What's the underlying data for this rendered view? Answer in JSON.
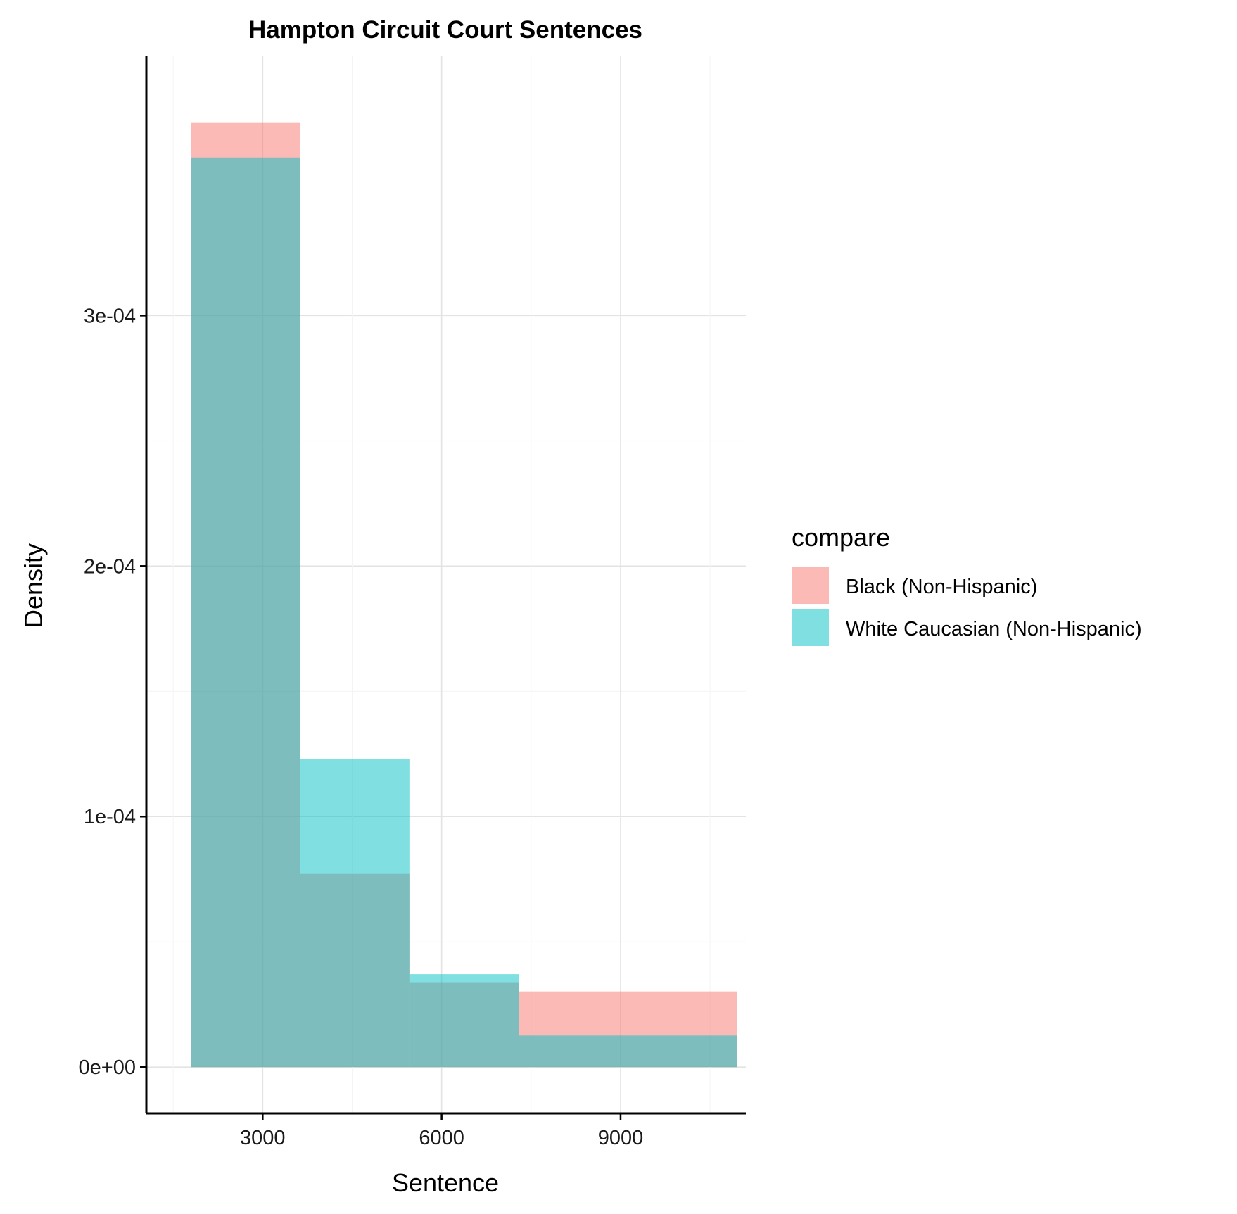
{
  "chart_data": {
    "type": "histogram",
    "title": "Hampton Circuit Court Sentences",
    "xlabel": "Sentence",
    "ylabel": "Density",
    "x_ticks": [
      3000,
      6000,
      9000
    ],
    "x_tick_labels": [
      "3000",
      "6000",
      "9000"
    ],
    "y_ticks": [
      0,
      0.0001,
      0.0002,
      0.0003
    ],
    "y_tick_labels": [
      "0e+00",
      "1e-04",
      "2e-04",
      "3e-04"
    ],
    "xlim": [
      1050,
      11100
    ],
    "ylim": [
      -1.85e-05,
      0.0004035
    ],
    "grid": true,
    "legend_title": "compare",
    "legend_position": "right",
    "bins": [
      [
        1800,
        3630
      ],
      [
        3630,
        5460
      ],
      [
        5460,
        7290
      ],
      [
        7290,
        10950
      ]
    ],
    "series": [
      {
        "name": "Black (Non-Hispanic)",
        "color": "#F8766D",
        "values": [
          0.0003769,
          7.71e-05,
          3.36e-05,
          3.02e-05
        ]
      },
      {
        "name": "White Caucasian (Non-Hispanic)",
        "color": "#00BFC4",
        "values": [
          0.0003631,
          0.000123,
          3.71e-05,
          1.26e-05
        ]
      }
    ]
  }
}
